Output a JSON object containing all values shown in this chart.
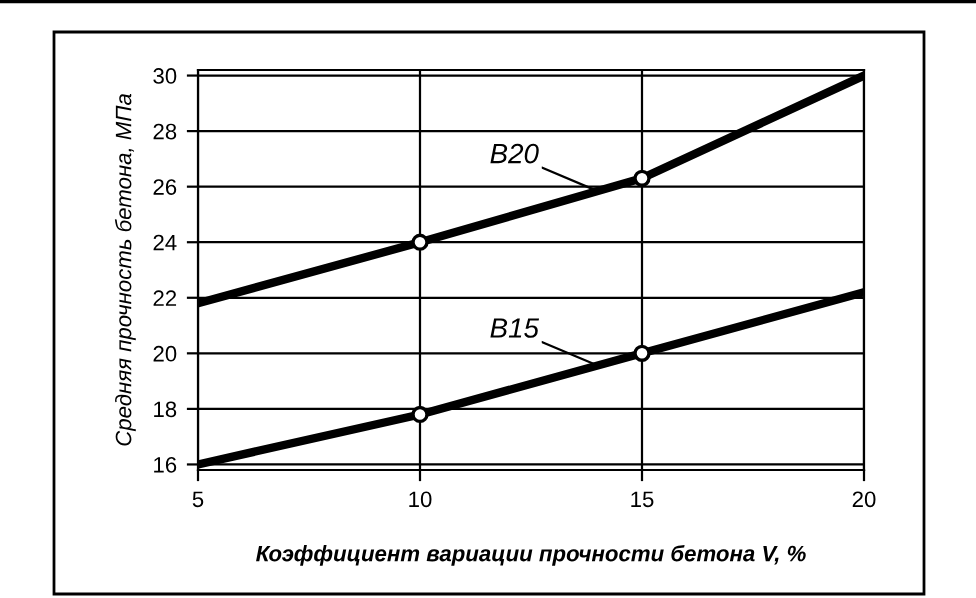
{
  "chart_data": {
    "type": "line",
    "xlabel": "Коэффициент вариации прочности бетона V, %",
    "ylabel": "Средняя прочность бетона, МПа",
    "x": [
      5,
      10,
      15,
      20
    ],
    "series": [
      {
        "name": "B20",
        "color": "#000000",
        "values": [
          21.8,
          24,
          26.3,
          30
        ]
      },
      {
        "name": "B15",
        "color": "#000000",
        "values": [
          16,
          17.8,
          20,
          22.2
        ]
      },
      {
        "type": "scatter",
        "color": "#ffffff",
        "values": [
          null,
          24,
          26.3,
          null
        ],
        "marker": "circle"
      },
      {
        "type": "scatter",
        "color": "#ffffff",
        "values": [
          null,
          17.8,
          20,
          null
        ],
        "marker": "circle"
      }
    ],
    "xlim": [
      5,
      20
    ],
    "ylim": [
      15.8,
      30.2
    ],
    "xticks": [
      5,
      10,
      15,
      20
    ],
    "yticks": [
      16,
      18,
      20,
      22,
      24,
      26,
      28,
      30
    ],
    "grid": true,
    "line_style": "solid"
  }
}
